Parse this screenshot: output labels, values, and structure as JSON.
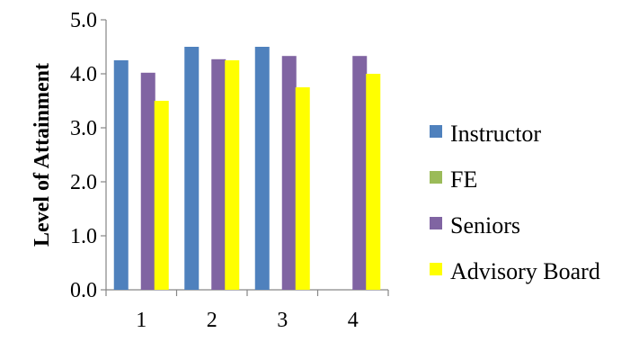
{
  "chart_data": {
    "type": "bar",
    "title": "",
    "xlabel": "",
    "ylabel": "Level of Attainment",
    "categories": [
      "1",
      "2",
      "3",
      "4"
    ],
    "ylim": [
      0,
      5
    ],
    "yticks": [
      "0.0",
      "1.0",
      "2.0",
      "3.0",
      "4.0",
      "5.0"
    ],
    "grid": false,
    "legend_position": "right",
    "series": [
      {
        "name": "Instructor",
        "color": "#4F81BD",
        "values": [
          4.25,
          4.5,
          4.5,
          null
        ]
      },
      {
        "name": "FE",
        "color": "#9BBB59",
        "values": [
          null,
          null,
          null,
          null
        ]
      },
      {
        "name": "Seniors",
        "color": "#8064A2",
        "values": [
          4.02,
          4.27,
          4.33,
          4.33
        ]
      },
      {
        "name": "Advisory Board",
        "color": "#FFFF00",
        "values": [
          3.5,
          4.25,
          3.75,
          4.0
        ]
      }
    ]
  }
}
